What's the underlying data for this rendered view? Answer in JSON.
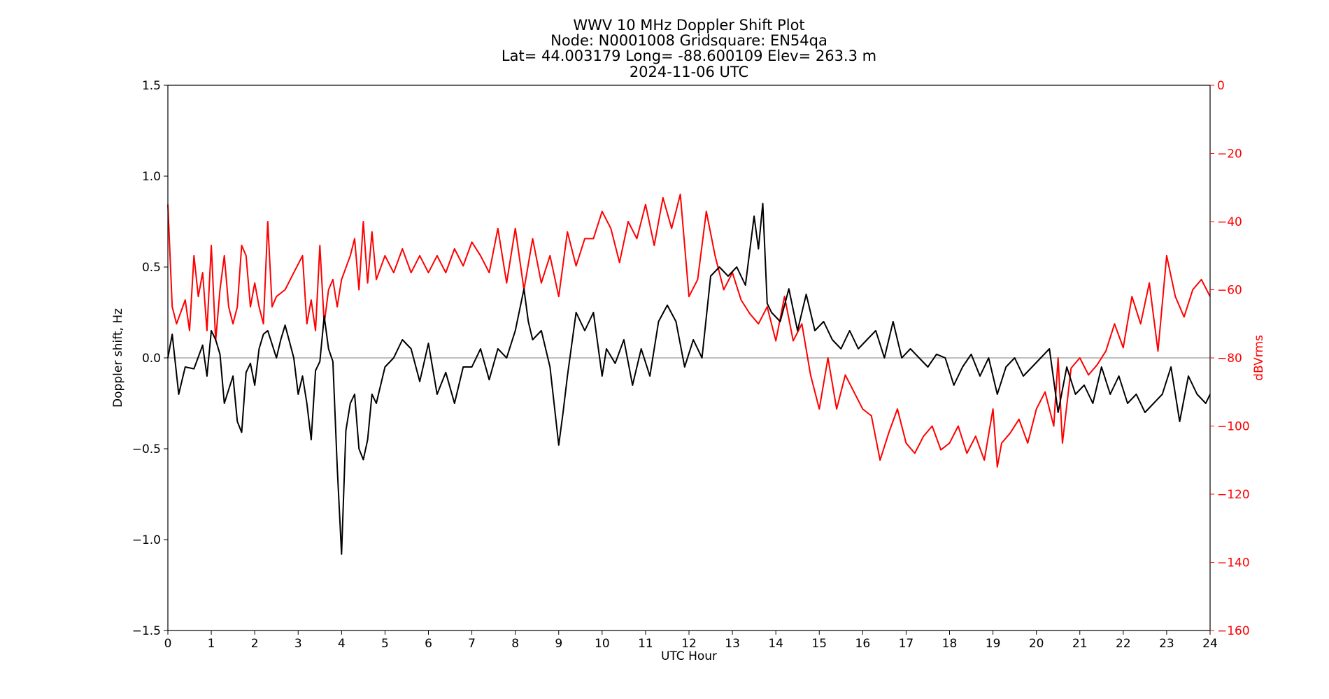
{
  "chart_data": {
    "type": "line",
    "title_lines": [
      "WWV 10 MHz Doppler Shift Plot",
      "Node:  N0001008     Gridsquare:  EN54qa",
      "Lat= 44.003179    Long= -88.600109    Elev= 263.3 m",
      "2024-11-06  UTC"
    ],
    "xlabel": "UTC Hour",
    "ylabel_left": "Doppler shift, Hz",
    "ylabel_right": "dBVrms",
    "xlim": [
      0,
      24
    ],
    "ylim_left": [
      -1.5,
      1.5
    ],
    "ylim_right": [
      -160,
      0
    ],
    "x_ticks": [
      "0",
      "1",
      "2",
      "3",
      "4",
      "5",
      "6",
      "7",
      "8",
      "9",
      "10",
      "11",
      "12",
      "13",
      "14",
      "15",
      "16",
      "17",
      "18",
      "19",
      "20",
      "21",
      "22",
      "23",
      "24"
    ],
    "y_ticks_left": [
      "1.5",
      "1.0",
      "0.5",
      "0.0",
      "−0.5",
      "−1.0",
      "−1.5"
    ],
    "y_ticks_right": [
      "0",
      "−20",
      "−40",
      "−60",
      "−80",
      "−100",
      "−120",
      "−140",
      "−160"
    ],
    "zero_line": 0,
    "colors": {
      "doppler": "#000000",
      "power": "#ff0000",
      "zero_line": "#999999",
      "right_axis": "#ff0000"
    },
    "series": [
      {
        "axis": "left",
        "color": "#000000",
        "x": [
          0,
          0.1,
          0.25,
          0.4,
          0.6,
          0.8,
          0.9,
          1.0,
          1.1,
          1.2,
          1.3,
          1.5,
          1.6,
          1.7,
          1.8,
          1.9,
          2.0,
          2.1,
          2.2,
          2.3,
          2.5,
          2.6,
          2.7,
          2.9,
          3.0,
          3.1,
          3.2,
          3.3,
          3.4,
          3.5,
          3.6,
          3.7,
          3.8,
          3.9,
          4.0,
          4.1,
          4.2,
          4.3,
          4.4,
          4.5,
          4.6,
          4.7,
          4.8,
          5.0,
          5.2,
          5.4,
          5.6,
          5.8,
          6.0,
          6.2,
          6.4,
          6.6,
          6.8,
          7.0,
          7.2,
          7.4,
          7.6,
          7.8,
          8.0,
          8.2,
          8.3,
          8.4,
          8.6,
          8.8,
          9.0,
          9.1,
          9.2,
          9.4,
          9.6,
          9.8,
          10.0,
          10.1,
          10.3,
          10.5,
          10.7,
          10.9,
          11.1,
          11.3,
          11.5,
          11.7,
          11.9,
          12.1,
          12.3,
          12.5,
          12.7,
          12.9,
          13.1,
          13.3,
          13.5,
          13.6,
          13.7,
          13.8,
          13.9,
          14.1,
          14.3,
          14.5,
          14.7,
          14.9,
          15.1,
          15.3,
          15.5,
          15.7,
          15.9,
          16.1,
          16.3,
          16.5,
          16.7,
          16.9,
          17.1,
          17.3,
          17.5,
          17.7,
          17.9,
          18.1,
          18.3,
          18.5,
          18.7,
          18.9,
          19.1,
          19.3,
          19.5,
          19.7,
          19.9,
          20.1,
          20.3,
          20.5,
          20.7,
          20.9,
          21.1,
          21.3,
          21.5,
          21.7,
          21.9,
          22.1,
          22.3,
          22.5,
          22.7,
          22.9,
          23.1,
          23.3,
          23.5,
          23.7,
          23.9,
          24.0
        ],
        "y": [
          0.0,
          0.13,
          -0.2,
          -0.05,
          -0.06,
          0.07,
          -0.1,
          0.15,
          0.1,
          0.02,
          -0.25,
          -0.1,
          -0.35,
          -0.41,
          -0.08,
          -0.03,
          -0.15,
          0.05,
          0.13,
          0.15,
          0.0,
          0.1,
          0.18,
          0.0,
          -0.2,
          -0.1,
          -0.25,
          -0.45,
          -0.07,
          -0.02,
          0.23,
          0.05,
          -0.02,
          -0.6,
          -1.08,
          -0.4,
          -0.25,
          -0.2,
          -0.5,
          -0.56,
          -0.45,
          -0.2,
          -0.25,
          -0.05,
          0.0,
          0.1,
          0.05,
          -0.13,
          0.08,
          -0.2,
          -0.08,
          -0.25,
          -0.05,
          -0.05,
          0.05,
          -0.12,
          0.05,
          0.0,
          0.15,
          0.38,
          0.2,
          0.1,
          0.15,
          -0.05,
          -0.48,
          -0.3,
          -0.1,
          0.25,
          0.15,
          0.25,
          -0.1,
          0.05,
          -0.03,
          0.1,
          -0.15,
          0.05,
          -0.1,
          0.2,
          0.29,
          0.2,
          -0.05,
          0.1,
          0.0,
          0.45,
          0.5,
          0.45,
          0.5,
          0.4,
          0.78,
          0.6,
          0.85,
          0.3,
          0.25,
          0.2,
          0.38,
          0.15,
          0.35,
          0.15,
          0.2,
          0.1,
          0.05,
          0.15,
          0.05,
          0.1,
          0.15,
          0.0,
          0.2,
          0.0,
          0.05,
          0.0,
          -0.05,
          0.02,
          0.0,
          -0.15,
          -0.05,
          0.02,
          -0.1,
          0.0,
          -0.2,
          -0.05,
          0.0,
          -0.1,
          -0.05,
          0.0,
          0.05,
          -0.3,
          -0.05,
          -0.2,
          -0.15,
          -0.25,
          -0.05,
          -0.2,
          -0.1,
          -0.25,
          -0.2,
          -0.3,
          -0.25,
          -0.2,
          -0.05,
          -0.35,
          -0.1,
          -0.2,
          -0.25,
          -0.2
        ]
      },
      {
        "axis": "right",
        "color": "#ff0000",
        "x": [
          0,
          0.1,
          0.2,
          0.4,
          0.5,
          0.6,
          0.7,
          0.8,
          0.9,
          1.0,
          1.1,
          1.2,
          1.3,
          1.4,
          1.5,
          1.6,
          1.7,
          1.8,
          1.9,
          2.0,
          2.1,
          2.2,
          2.3,
          2.4,
          2.5,
          2.7,
          2.9,
          3.1,
          3.2,
          3.3,
          3.4,
          3.5,
          3.6,
          3.7,
          3.8,
          3.9,
          4.0,
          4.2,
          4.3,
          4.4,
          4.5,
          4.6,
          4.7,
          4.8,
          5.0,
          5.2,
          5.4,
          5.6,
          5.8,
          6.0,
          6.2,
          6.4,
          6.6,
          6.8,
          7.0,
          7.2,
          7.4,
          7.6,
          7.8,
          8.0,
          8.2,
          8.4,
          8.6,
          8.8,
          9.0,
          9.2,
          9.4,
          9.6,
          9.8,
          10.0,
          10.2,
          10.4,
          10.6,
          10.8,
          11.0,
          11.2,
          11.4,
          11.6,
          11.8,
          12.0,
          12.2,
          12.4,
          12.6,
          12.8,
          13.0,
          13.2,
          13.4,
          13.6,
          13.8,
          14.0,
          14.2,
          14.4,
          14.6,
          14.8,
          15.0,
          15.2,
          15.4,
          15.6,
          15.8,
          16.0,
          16.2,
          16.4,
          16.6,
          16.8,
          17.0,
          17.2,
          17.4,
          17.6,
          17.8,
          18.0,
          18.2,
          18.4,
          18.6,
          18.8,
          19.0,
          19.1,
          19.2,
          19.4,
          19.6,
          19.8,
          20.0,
          20.2,
          20.4,
          20.5,
          20.6,
          20.8,
          21.0,
          21.2,
          21.4,
          21.6,
          21.8,
          22.0,
          22.2,
          22.4,
          22.6,
          22.8,
          23.0,
          23.2,
          23.4,
          23.6,
          23.8,
          24.0
        ],
        "y": [
          -35,
          -65,
          -70,
          -63,
          -72,
          -50,
          -62,
          -55,
          -72,
          -47,
          -75,
          -60,
          -50,
          -65,
          -70,
          -65,
          -47,
          -50,
          -65,
          -58,
          -65,
          -70,
          -40,
          -65,
          -62,
          -60,
          -55,
          -50,
          -70,
          -63,
          -72,
          -47,
          -70,
          -60,
          -57,
          -65,
          -57,
          -50,
          -45,
          -60,
          -40,
          -58,
          -43,
          -57,
          -50,
          -55,
          -48,
          -55,
          -50,
          -55,
          -50,
          -55,
          -48,
          -53,
          -46,
          -50,
          -55,
          -42,
          -58,
          -42,
          -60,
          -45,
          -58,
          -50,
          -62,
          -43,
          -53,
          -45,
          -45,
          -37,
          -42,
          -52,
          -40,
          -45,
          -35,
          -47,
          -33,
          -42,
          -32,
          -62,
          -57,
          -37,
          -50,
          -60,
          -55,
          -63,
          -67,
          -70,
          -65,
          -75,
          -62,
          -75,
          -70,
          -85,
          -95,
          -80,
          -95,
          -85,
          -90,
          -95,
          -97,
          -110,
          -102,
          -95,
          -105,
          -108,
          -103,
          -100,
          -107,
          -105,
          -100,
          -108,
          -103,
          -110,
          -95,
          -112,
          -105,
          -102,
          -98,
          -105,
          -95,
          -90,
          -100,
          -80,
          -105,
          -83,
          -80,
          -85,
          -82,
          -78,
          -70,
          -77,
          -62,
          -70,
          -58,
          -78,
          -50,
          -62,
          -68,
          -60,
          -57,
          -62
        ]
      }
    ]
  }
}
